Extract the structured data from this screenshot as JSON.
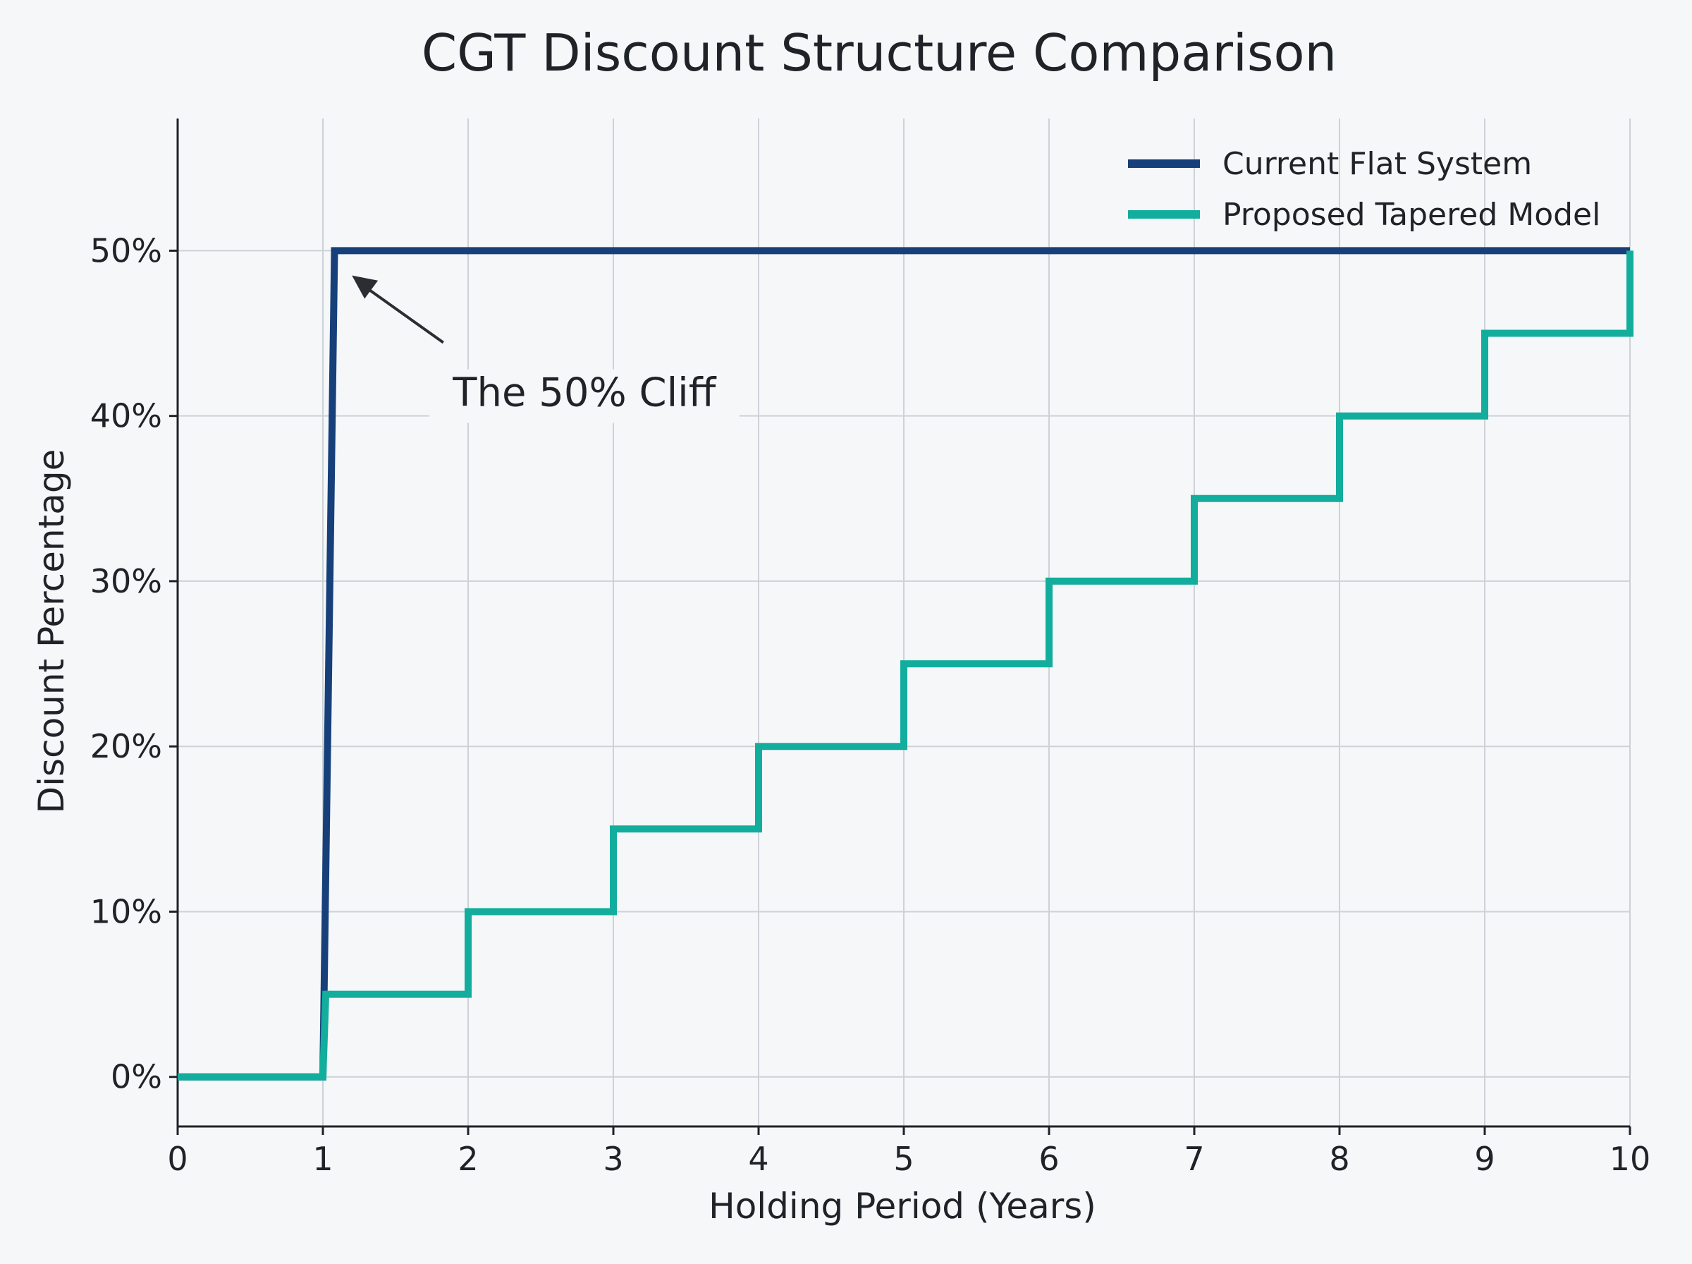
{
  "chart_data": {
    "type": "line",
    "title": "CGT Discount Structure Comparison",
    "xlabel": "Holding Period (Years)",
    "ylabel": "Discount Percentage",
    "xlim": [
      0,
      10
    ],
    "ylim": [
      -3,
      58
    ],
    "x_ticks": [
      0,
      1,
      2,
      3,
      4,
      5,
      6,
      7,
      8,
      9,
      10
    ],
    "x_tick_labels": [
      "0",
      "1",
      "2",
      "3",
      "4",
      "5",
      "6",
      "7",
      "8",
      "9",
      "10"
    ],
    "y_ticks": [
      0,
      10,
      20,
      30,
      40,
      50
    ],
    "y_tick_labels": [
      "0%",
      "10%",
      "20%",
      "30%",
      "40%",
      "50%"
    ],
    "grid": true,
    "legend_position": "top-right",
    "series": [
      {
        "name": "Current Flat System",
        "color": "#173f7a",
        "points": [
          [
            0,
            0
          ],
          [
            1,
            0
          ],
          [
            1.08,
            50
          ],
          [
            10,
            50
          ]
        ]
      },
      {
        "name": "Proposed Tapered Model",
        "color": "#12ad9d",
        "points": [
          [
            0,
            0
          ],
          [
            1,
            0
          ],
          [
            1.02,
            5
          ],
          [
            2,
            5
          ],
          [
            2,
            10
          ],
          [
            3,
            10
          ],
          [
            3,
            15
          ],
          [
            4,
            15
          ],
          [
            4,
            20
          ],
          [
            5,
            20
          ],
          [
            5,
            25
          ],
          [
            6,
            25
          ],
          [
            6,
            30
          ],
          [
            7,
            30
          ],
          [
            7,
            35
          ],
          [
            8,
            35
          ],
          [
            8,
            40
          ],
          [
            9,
            40
          ],
          [
            9,
            45
          ],
          [
            10,
            45
          ],
          [
            10,
            50
          ]
        ]
      }
    ],
    "annotations": [
      {
        "text": "The 50% Cliff",
        "x": 2.8,
        "y": 40.6,
        "arrow_to": [
          1.2,
          48.5
        ]
      }
    ]
  }
}
